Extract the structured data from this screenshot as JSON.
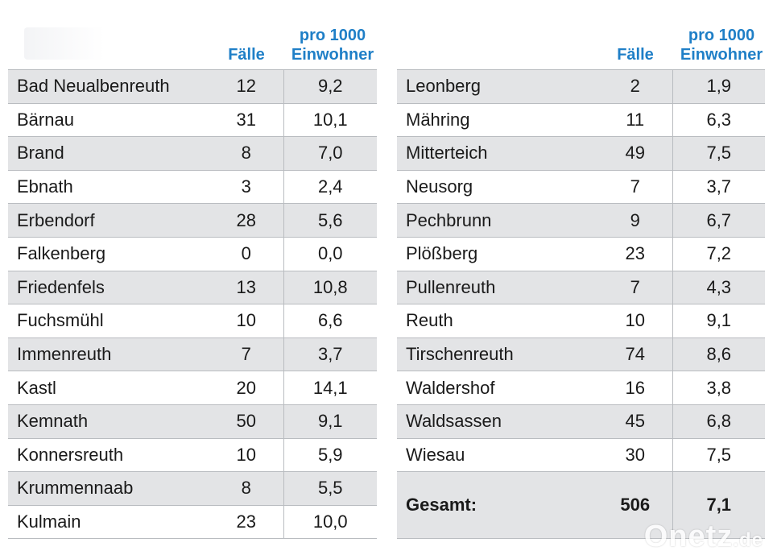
{
  "headers": {
    "faelle": "Fälle",
    "rate_line1": "pro 1000",
    "rate_line2": "Einwohner"
  },
  "left_rows": [
    {
      "name": "Bad Neualbenreuth",
      "faelle": "12",
      "rate": "9,2"
    },
    {
      "name": "Bärnau",
      "faelle": "31",
      "rate": "10,1"
    },
    {
      "name": "Brand",
      "faelle": "8",
      "rate": "7,0"
    },
    {
      "name": "Ebnath",
      "faelle": "3",
      "rate": "2,4"
    },
    {
      "name": "Erbendorf",
      "faelle": "28",
      "rate": "5,6"
    },
    {
      "name": "Falkenberg",
      "faelle": "0",
      "rate": "0,0"
    },
    {
      "name": "Friedenfels",
      "faelle": "13",
      "rate": "10,8"
    },
    {
      "name": "Fuchsmühl",
      "faelle": "10",
      "rate": "6,6"
    },
    {
      "name": "Immenreuth",
      "faelle": "7",
      "rate": "3,7"
    },
    {
      "name": "Kastl",
      "faelle": "20",
      "rate": "14,1"
    },
    {
      "name": "Kemnath",
      "faelle": "50",
      "rate": "9,1"
    },
    {
      "name": "Konnersreuth",
      "faelle": "10",
      "rate": "5,9"
    },
    {
      "name": "Krummennaab",
      "faelle": "8",
      "rate": "5,5"
    },
    {
      "name": "Kulmain",
      "faelle": "23",
      "rate": "10,0"
    }
  ],
  "right_rows": [
    {
      "name": "Leonberg",
      "faelle": "2",
      "rate": "1,9"
    },
    {
      "name": "Mähring",
      "faelle": "11",
      "rate": "6,3"
    },
    {
      "name": "Mitterteich",
      "faelle": "49",
      "rate": "7,5"
    },
    {
      "name": "Neusorg",
      "faelle": "7",
      "rate": "3,7"
    },
    {
      "name": "Pechbrunn",
      "faelle": "9",
      "rate": "6,7"
    },
    {
      "name": "Plößberg",
      "faelle": "23",
      "rate": "7,2"
    },
    {
      "name": "Pullenreuth",
      "faelle": "7",
      "rate": "4,3"
    },
    {
      "name": "Reuth",
      "faelle": "10",
      "rate": "9,1"
    },
    {
      "name": "Tirschenreuth",
      "faelle": "74",
      "rate": "8,6"
    },
    {
      "name": "Waldershof",
      "faelle": "16",
      "rate": "3,8"
    },
    {
      "name": "Waldsassen",
      "faelle": "45",
      "rate": "6,8"
    },
    {
      "name": "Wiesau",
      "faelle": "30",
      "rate": "7,5"
    }
  ],
  "total": {
    "label": "Gesamt:",
    "faelle": "506",
    "rate": "7,1"
  },
  "watermark": {
    "main": "Onetz",
    "suffix": ".de"
  },
  "colors": {
    "header_blue": "#1f7fc7",
    "row_shade": "#e3e4e6",
    "rule": "#b9bcc0"
  }
}
